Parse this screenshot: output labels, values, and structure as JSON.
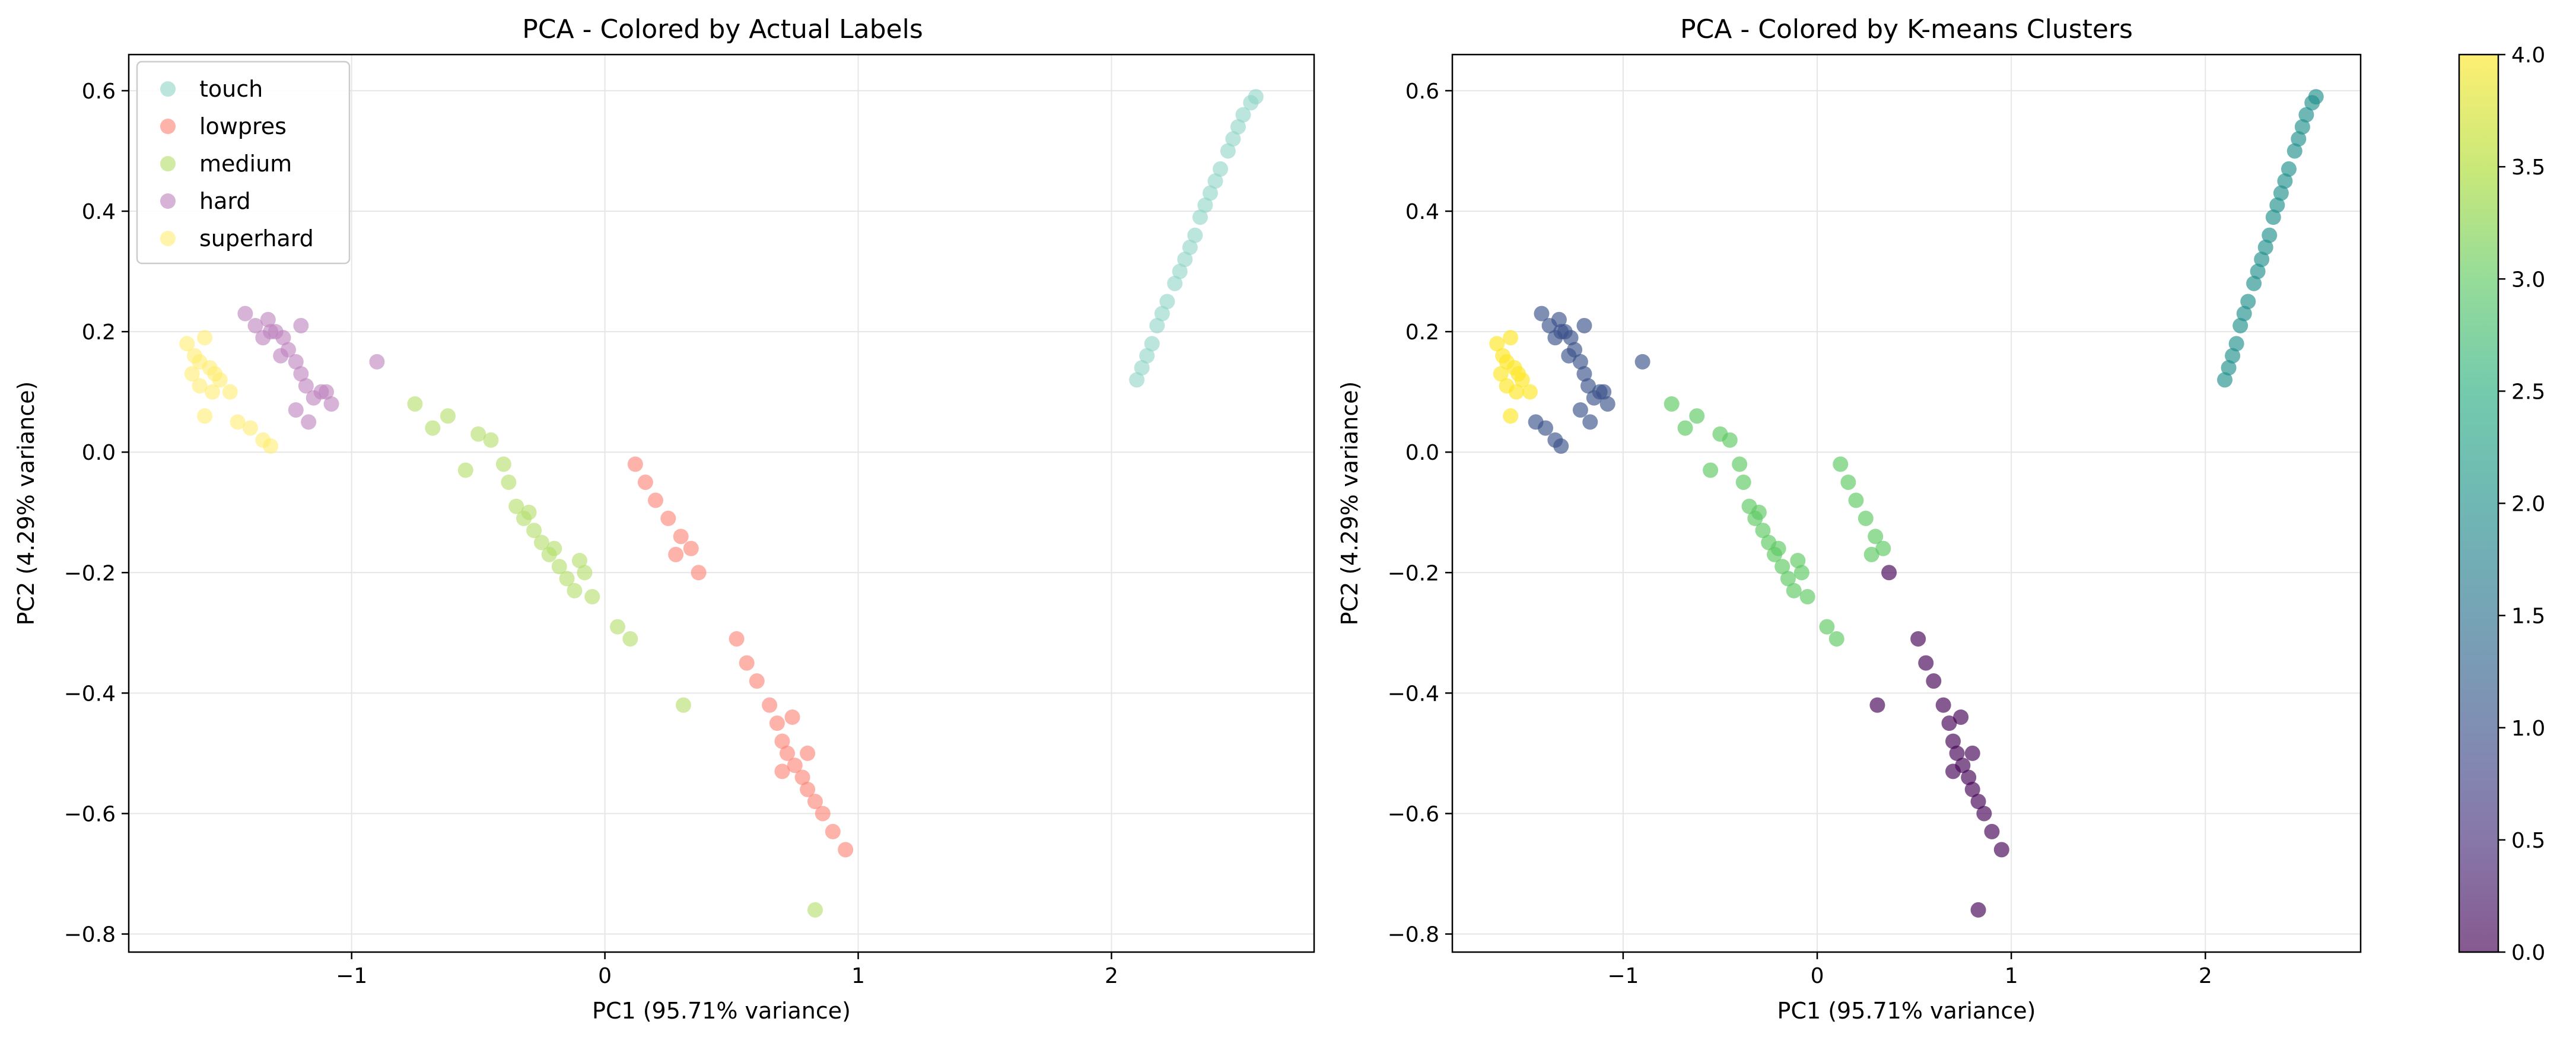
{
  "chart_data": [
    {
      "type": "scatter",
      "title": "PCA - Colored by Actual Labels",
      "xlabel": "PC1 (95.71% variance)",
      "ylabel": "PC2 (4.29% variance)",
      "xlim": [
        -1.88,
        2.8
      ],
      "ylim": [
        -0.83,
        0.66
      ],
      "xticks": [
        -1,
        0,
        1,
        2
      ],
      "yticks": [
        -0.8,
        -0.6,
        -0.4,
        -0.2,
        0.0,
        0.2,
        0.4,
        0.6
      ],
      "xtick_labels": [
        "−1",
        "0",
        "1",
        "2"
      ],
      "ytick_labels": [
        "−0.8",
        "−0.6",
        "−0.4",
        "−0.2",
        "0.0",
        "0.2",
        "0.4",
        "0.6"
      ],
      "grid": true,
      "legend_position": "upper-left",
      "series": [
        {
          "name": "touch",
          "color": "#8dd3c7",
          "points": [
            [
              2.1,
              0.12
            ],
            [
              2.12,
              0.14
            ],
            [
              2.14,
              0.16
            ],
            [
              2.16,
              0.18
            ],
            [
              2.18,
              0.21
            ],
            [
              2.2,
              0.23
            ],
            [
              2.22,
              0.25
            ],
            [
              2.25,
              0.28
            ],
            [
              2.27,
              0.3
            ],
            [
              2.29,
              0.32
            ],
            [
              2.31,
              0.34
            ],
            [
              2.33,
              0.36
            ],
            [
              2.35,
              0.39
            ],
            [
              2.37,
              0.41
            ],
            [
              2.39,
              0.43
            ],
            [
              2.41,
              0.45
            ],
            [
              2.43,
              0.47
            ],
            [
              2.46,
              0.5
            ],
            [
              2.48,
              0.52
            ],
            [
              2.5,
              0.54
            ],
            [
              2.52,
              0.56
            ],
            [
              2.55,
              0.58
            ],
            [
              2.57,
              0.59
            ]
          ]
        },
        {
          "name": "lowpres",
          "color": "#fb8072",
          "points": [
            [
              0.12,
              -0.02
            ],
            [
              0.16,
              -0.05
            ],
            [
              0.2,
              -0.08
            ],
            [
              0.25,
              -0.11
            ],
            [
              0.3,
              -0.14
            ],
            [
              0.34,
              -0.16
            ],
            [
              0.37,
              -0.2
            ],
            [
              0.28,
              -0.17
            ],
            [
              0.52,
              -0.31
            ],
            [
              0.56,
              -0.35
            ],
            [
              0.6,
              -0.38
            ],
            [
              0.65,
              -0.42
            ],
            [
              0.68,
              -0.45
            ],
            [
              0.7,
              -0.48
            ],
            [
              0.72,
              -0.5
            ],
            [
              0.75,
              -0.52
            ],
            [
              0.78,
              -0.54
            ],
            [
              0.8,
              -0.56
            ],
            [
              0.83,
              -0.58
            ],
            [
              0.86,
              -0.6
            ],
            [
              0.9,
              -0.63
            ],
            [
              0.95,
              -0.66
            ],
            [
              0.74,
              -0.44
            ],
            [
              0.8,
              -0.5
            ],
            [
              0.7,
              -0.53
            ]
          ]
        },
        {
          "name": "medium",
          "color": "#b3de69",
          "points": [
            [
              -0.75,
              0.08
            ],
            [
              -0.68,
              0.04
            ],
            [
              -0.62,
              0.06
            ],
            [
              -0.55,
              -0.03
            ],
            [
              -0.5,
              0.03
            ],
            [
              -0.45,
              0.02
            ],
            [
              -0.4,
              -0.02
            ],
            [
              -0.38,
              -0.05
            ],
            [
              -0.35,
              -0.09
            ],
            [
              -0.32,
              -0.11
            ],
            [
              -0.28,
              -0.13
            ],
            [
              -0.25,
              -0.15
            ],
            [
              -0.22,
              -0.17
            ],
            [
              -0.18,
              -0.19
            ],
            [
              -0.15,
              -0.21
            ],
            [
              -0.12,
              -0.23
            ],
            [
              -0.08,
              -0.2
            ],
            [
              -0.05,
              -0.24
            ],
            [
              0.05,
              -0.29
            ],
            [
              0.1,
              -0.31
            ],
            [
              0.31,
              -0.42
            ],
            [
              0.83,
              -0.76
            ],
            [
              -0.3,
              -0.1
            ],
            [
              -0.2,
              -0.16
            ],
            [
              -0.1,
              -0.18
            ]
          ]
        },
        {
          "name": "hard",
          "color": "#bc80bd",
          "points": [
            [
              -1.42,
              0.23
            ],
            [
              -1.38,
              0.21
            ],
            [
              -1.33,
              0.22
            ],
            [
              -1.3,
              0.2
            ],
            [
              -1.27,
              0.19
            ],
            [
              -1.25,
              0.17
            ],
            [
              -1.22,
              0.15
            ],
            [
              -1.2,
              0.13
            ],
            [
              -1.18,
              0.11
            ],
            [
              -1.15,
              0.09
            ],
            [
              -1.12,
              0.1
            ],
            [
              -1.08,
              0.08
            ],
            [
              -1.22,
              0.07
            ],
            [
              -1.17,
              0.05
            ],
            [
              -1.35,
              0.19
            ],
            [
              -1.28,
              0.16
            ],
            [
              -1.2,
              0.21
            ],
            [
              -0.9,
              0.15
            ],
            [
              -1.1,
              0.1
            ],
            [
              -1.32,
              0.2
            ]
          ]
        },
        {
          "name": "superhard",
          "color": "#ffed6f",
          "points": [
            [
              -1.65,
              0.18
            ],
            [
              -1.62,
              0.16
            ],
            [
              -1.6,
              0.15
            ],
            [
              -1.58,
              0.19
            ],
            [
              -1.56,
              0.14
            ],
            [
              -1.54,
              0.13
            ],
            [
              -1.52,
              0.12
            ],
            [
              -1.55,
              0.1
            ],
            [
              -1.6,
              0.11
            ],
            [
              -1.48,
              0.1
            ],
            [
              -1.45,
              0.05
            ],
            [
              -1.4,
              0.04
            ],
            [
              -1.35,
              0.02
            ],
            [
              -1.32,
              0.01
            ],
            [
              -1.58,
              0.06
            ],
            [
              -1.63,
              0.13
            ]
          ]
        }
      ]
    },
    {
      "type": "scatter",
      "title": "PCA - Colored by K-means Clusters",
      "xlabel": "PC1 (95.71% variance)",
      "ylabel": "PC2 (4.29% variance)",
      "xlim": [
        -1.88,
        2.8
      ],
      "ylim": [
        -0.83,
        0.66
      ],
      "xticks": [
        -1,
        0,
        1,
        2
      ],
      "yticks": [
        -0.8,
        -0.6,
        -0.4,
        -0.2,
        0.0,
        0.2,
        0.4,
        0.6
      ],
      "xtick_labels": [
        "−1",
        "0",
        "1",
        "2"
      ],
      "ytick_labels": [
        "−0.8",
        "−0.6",
        "−0.4",
        "−0.2",
        "0.0",
        "0.2",
        "0.4",
        "0.6"
      ],
      "grid": true,
      "colormap": "viridis",
      "colorbar": {
        "range": [
          0.0,
          4.0
        ],
        "ticks": [
          0.0,
          0.5,
          1.0,
          1.5,
          2.0,
          2.5,
          3.0,
          3.5,
          4.0
        ],
        "tick_labels": [
          "0.0",
          "0.5",
          "1.0",
          "1.5",
          "2.0",
          "2.5",
          "3.0",
          "3.5",
          "4.0"
        ]
      },
      "clusters": [
        {
          "value": 0,
          "color": "#440154",
          "points": [
            [
              0.52,
              -0.31
            ],
            [
              0.56,
              -0.35
            ],
            [
              0.6,
              -0.38
            ],
            [
              0.65,
              -0.42
            ],
            [
              0.68,
              -0.45
            ],
            [
              0.7,
              -0.48
            ],
            [
              0.72,
              -0.5
            ],
            [
              0.75,
              -0.52
            ],
            [
              0.78,
              -0.54
            ],
            [
              0.8,
              -0.56
            ],
            [
              0.83,
              -0.58
            ],
            [
              0.86,
              -0.6
            ],
            [
              0.9,
              -0.63
            ],
            [
              0.95,
              -0.66
            ],
            [
              0.74,
              -0.44
            ],
            [
              0.8,
              -0.5
            ],
            [
              0.7,
              -0.53
            ],
            [
              0.83,
              -0.76
            ],
            [
              0.31,
              -0.42
            ],
            [
              0.37,
              -0.2
            ]
          ]
        },
        {
          "value": 1,
          "color": "#3b528b",
          "points": [
            [
              -1.42,
              0.23
            ],
            [
              -1.38,
              0.21
            ],
            [
              -1.33,
              0.22
            ],
            [
              -1.3,
              0.2
            ],
            [
              -1.27,
              0.19
            ],
            [
              -1.25,
              0.17
            ],
            [
              -1.22,
              0.15
            ],
            [
              -1.2,
              0.13
            ],
            [
              -1.18,
              0.11
            ],
            [
              -1.15,
              0.09
            ],
            [
              -1.12,
              0.1
            ],
            [
              -1.08,
              0.08
            ],
            [
              -1.22,
              0.07
            ],
            [
              -1.17,
              0.05
            ],
            [
              -1.35,
              0.19
            ],
            [
              -1.28,
              0.16
            ],
            [
              -1.2,
              0.21
            ],
            [
              -0.9,
              0.15
            ],
            [
              -1.1,
              0.1
            ],
            [
              -1.32,
              0.2
            ],
            [
              -1.45,
              0.05
            ],
            [
              -1.4,
              0.04
            ],
            [
              -1.35,
              0.02
            ],
            [
              -1.32,
              0.01
            ]
          ]
        },
        {
          "value": 2,
          "color": "#21918c",
          "points": [
            [
              2.1,
              0.12
            ],
            [
              2.12,
              0.14
            ],
            [
              2.14,
              0.16
            ],
            [
              2.16,
              0.18
            ],
            [
              2.18,
              0.21
            ],
            [
              2.2,
              0.23
            ],
            [
              2.22,
              0.25
            ],
            [
              2.25,
              0.28
            ],
            [
              2.27,
              0.3
            ],
            [
              2.29,
              0.32
            ],
            [
              2.31,
              0.34
            ],
            [
              2.33,
              0.36
            ],
            [
              2.35,
              0.39
            ],
            [
              2.37,
              0.41
            ],
            [
              2.39,
              0.43
            ],
            [
              2.41,
              0.45
            ],
            [
              2.43,
              0.47
            ],
            [
              2.46,
              0.5
            ],
            [
              2.48,
              0.52
            ],
            [
              2.5,
              0.54
            ],
            [
              2.52,
              0.56
            ],
            [
              2.55,
              0.58
            ],
            [
              2.57,
              0.59
            ]
          ]
        },
        {
          "value": 3,
          "color": "#5ec962",
          "points": [
            [
              -0.75,
              0.08
            ],
            [
              -0.68,
              0.04
            ],
            [
              -0.62,
              0.06
            ],
            [
              -0.55,
              -0.03
            ],
            [
              -0.5,
              0.03
            ],
            [
              -0.45,
              0.02
            ],
            [
              -0.4,
              -0.02
            ],
            [
              -0.38,
              -0.05
            ],
            [
              -0.35,
              -0.09
            ],
            [
              -0.32,
              -0.11
            ],
            [
              -0.28,
              -0.13
            ],
            [
              -0.25,
              -0.15
            ],
            [
              -0.22,
              -0.17
            ],
            [
              -0.18,
              -0.19
            ],
            [
              -0.15,
              -0.21
            ],
            [
              -0.12,
              -0.23
            ],
            [
              -0.08,
              -0.2
            ],
            [
              -0.05,
              -0.24
            ],
            [
              0.05,
              -0.29
            ],
            [
              0.1,
              -0.31
            ],
            [
              -0.3,
              -0.1
            ],
            [
              -0.2,
              -0.16
            ],
            [
              -0.1,
              -0.18
            ],
            [
              0.12,
              -0.02
            ],
            [
              0.16,
              -0.05
            ],
            [
              0.2,
              -0.08
            ],
            [
              0.25,
              -0.11
            ],
            [
              0.3,
              -0.14
            ],
            [
              0.34,
              -0.16
            ],
            [
              0.28,
              -0.17
            ]
          ]
        },
        {
          "value": 4,
          "color": "#fde725",
          "points": [
            [
              -1.65,
              0.18
            ],
            [
              -1.62,
              0.16
            ],
            [
              -1.6,
              0.15
            ],
            [
              -1.58,
              0.19
            ],
            [
              -1.56,
              0.14
            ],
            [
              -1.54,
              0.13
            ],
            [
              -1.52,
              0.12
            ],
            [
              -1.55,
              0.1
            ],
            [
              -1.6,
              0.11
            ],
            [
              -1.48,
              0.1
            ],
            [
              -1.58,
              0.06
            ],
            [
              -1.63,
              0.13
            ]
          ]
        }
      ]
    }
  ]
}
